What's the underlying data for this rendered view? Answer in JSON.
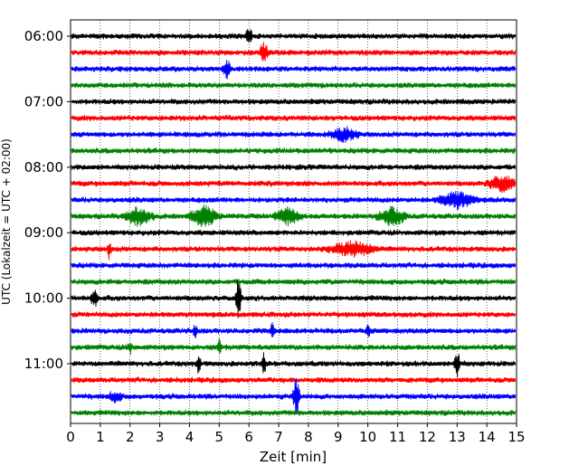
{
  "chart_data": {
    "type": "line",
    "description_free": true,
    "xlabel": "Zeit  [min]",
    "ylabel": "UTC (Lokalzeit = UTC + 02:00)",
    "xlim": [
      0,
      15
    ],
    "x_ticks": [
      "0",
      "1",
      "2",
      "3",
      "4",
      "5",
      "6",
      "7",
      "8",
      "9",
      "10",
      "11",
      "12",
      "13",
      "14",
      "15"
    ],
    "y_ticks": [
      "06:00",
      "07:00",
      "08:00",
      "09:00",
      "10:00",
      "11:00"
    ],
    "grid": "vertical-dotted",
    "trace_interval_min": 15,
    "trace_colors": [
      "#000000",
      "#ff0000",
      "#0000ff",
      "#008000"
    ],
    "start_time": "06:00",
    "trace_count": 24,
    "events": [
      {
        "trace": 0,
        "x": 6.0,
        "amp": 1.6,
        "w": 0.15
      },
      {
        "trace": 1,
        "x": 6.5,
        "amp": 1.8,
        "w": 0.2
      },
      {
        "trace": 2,
        "x": 5.25,
        "amp": 1.8,
        "w": 0.2
      },
      {
        "trace": 6,
        "x": 9.2,
        "amp": 1.3,
        "w": 0.6
      },
      {
        "trace": 9,
        "x": 14.5,
        "amp": 1.6,
        "w": 0.6
      },
      {
        "trace": 10,
        "x": 13.0,
        "amp": 1.6,
        "w": 0.8
      },
      {
        "trace": 11,
        "x": 2.3,
        "amp": 1.8,
        "w": 0.6
      },
      {
        "trace": 11,
        "x": 4.5,
        "amp": 2.0,
        "w": 0.6
      },
      {
        "trace": 11,
        "x": 7.3,
        "amp": 1.6,
        "w": 0.6
      },
      {
        "trace": 11,
        "x": 10.8,
        "amp": 1.8,
        "w": 0.6
      },
      {
        "trace": 13,
        "x": 1.3,
        "amp": 2.2,
        "w": 0.08
      },
      {
        "trace": 13,
        "x": 9.5,
        "amp": 1.4,
        "w": 1.0
      },
      {
        "trace": 16,
        "x": 0.8,
        "amp": 1.8,
        "w": 0.15
      },
      {
        "trace": 16,
        "x": 5.65,
        "amp": 4.5,
        "w": 0.12
      },
      {
        "trace": 18,
        "x": 4.2,
        "amp": 1.4,
        "w": 0.1
      },
      {
        "trace": 18,
        "x": 6.8,
        "amp": 1.6,
        "w": 0.1
      },
      {
        "trace": 18,
        "x": 10.0,
        "amp": 1.4,
        "w": 0.1
      },
      {
        "trace": 19,
        "x": 2.0,
        "amp": 1.4,
        "w": 0.1
      },
      {
        "trace": 19,
        "x": 5.0,
        "amp": 1.5,
        "w": 0.1
      },
      {
        "trace": 20,
        "x": 4.3,
        "amp": 1.8,
        "w": 0.1
      },
      {
        "trace": 20,
        "x": 6.5,
        "amp": 2.0,
        "w": 0.1
      },
      {
        "trace": 20,
        "x": 13.0,
        "amp": 3.5,
        "w": 0.12
      },
      {
        "trace": 22,
        "x": 1.5,
        "amp": 1.0,
        "w": 0.3
      },
      {
        "trace": 22,
        "x": 7.6,
        "amp": 4.5,
        "w": 0.15
      }
    ]
  }
}
